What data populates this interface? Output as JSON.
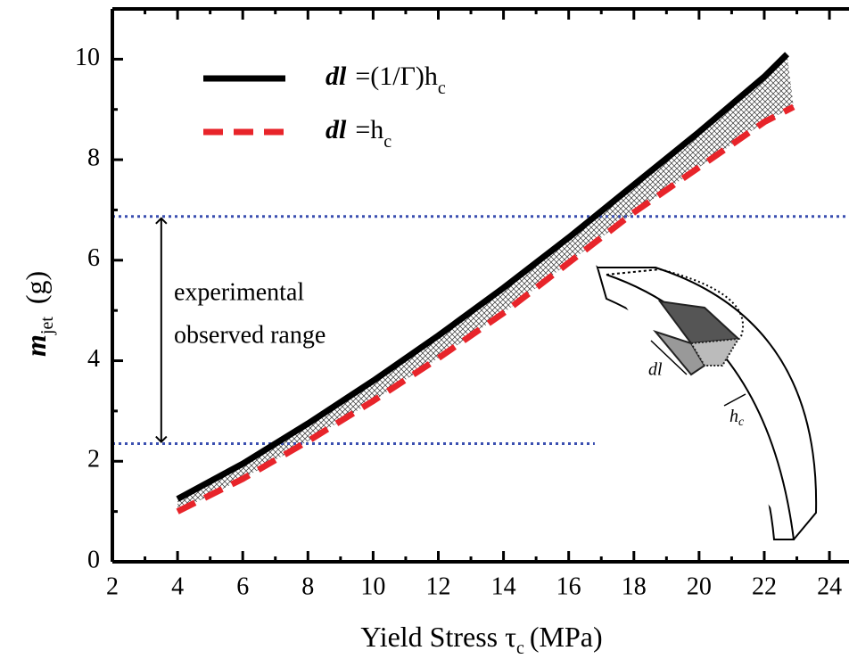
{
  "chart_data": {
    "type": "line",
    "x_label": {
      "text": "Yield Stress τ",
      "subscript": "c",
      "unit": "(MPa)"
    },
    "y_label": {
      "text": "m",
      "subscript": "jet",
      "unit": "(g)"
    },
    "xlim": [
      2,
      24.6
    ],
    "ylim": [
      0,
      11
    ],
    "xticks": [
      2,
      4,
      6,
      8,
      10,
      12,
      14,
      16,
      18,
      20,
      22,
      24
    ],
    "yticks": [
      0,
      2,
      4,
      6,
      8,
      10
    ],
    "xminorticks": [
      3,
      5,
      7,
      9,
      11,
      13,
      15,
      17,
      19,
      21,
      23
    ],
    "yminorticks": [
      1,
      3,
      5,
      7,
      9
    ],
    "legend": "upper left",
    "series": [
      {
        "name": "dl",
        "name_rest": "=(1/Γ)h",
        "name_subscript": "c",
        "color": "#000000",
        "dash": false,
        "x": [
          4,
          6,
          8,
          10,
          12,
          14,
          16,
          18,
          20,
          22,
          22.7
        ],
        "values": [
          1.25,
          1.95,
          2.75,
          3.6,
          4.5,
          5.45,
          6.45,
          7.5,
          8.55,
          9.65,
          10.1
        ]
      },
      {
        "name": "dl",
        "name_rest": "=h",
        "name_subscript": "c",
        "color": "#e8242a",
        "dash": true,
        "x": [
          4,
          6,
          8,
          10,
          12,
          14,
          16,
          18,
          20,
          22,
          22.9
        ],
        "values": [
          1.0,
          1.65,
          2.4,
          3.2,
          4.05,
          4.95,
          5.95,
          6.95,
          7.85,
          8.75,
          9.05
        ]
      }
    ],
    "reference_lines": [
      {
        "y": 6.87
      },
      {
        "y": 2.35,
        "x_end": 16.8
      }
    ],
    "reference_color": "#3a4fb0",
    "range_arrow_x": 3.5,
    "annotations": [
      "experimental",
      "observed range"
    ],
    "inset_labels": {
      "dl": "dl",
      "hc": "h",
      "hc_subscript": "c"
    }
  }
}
